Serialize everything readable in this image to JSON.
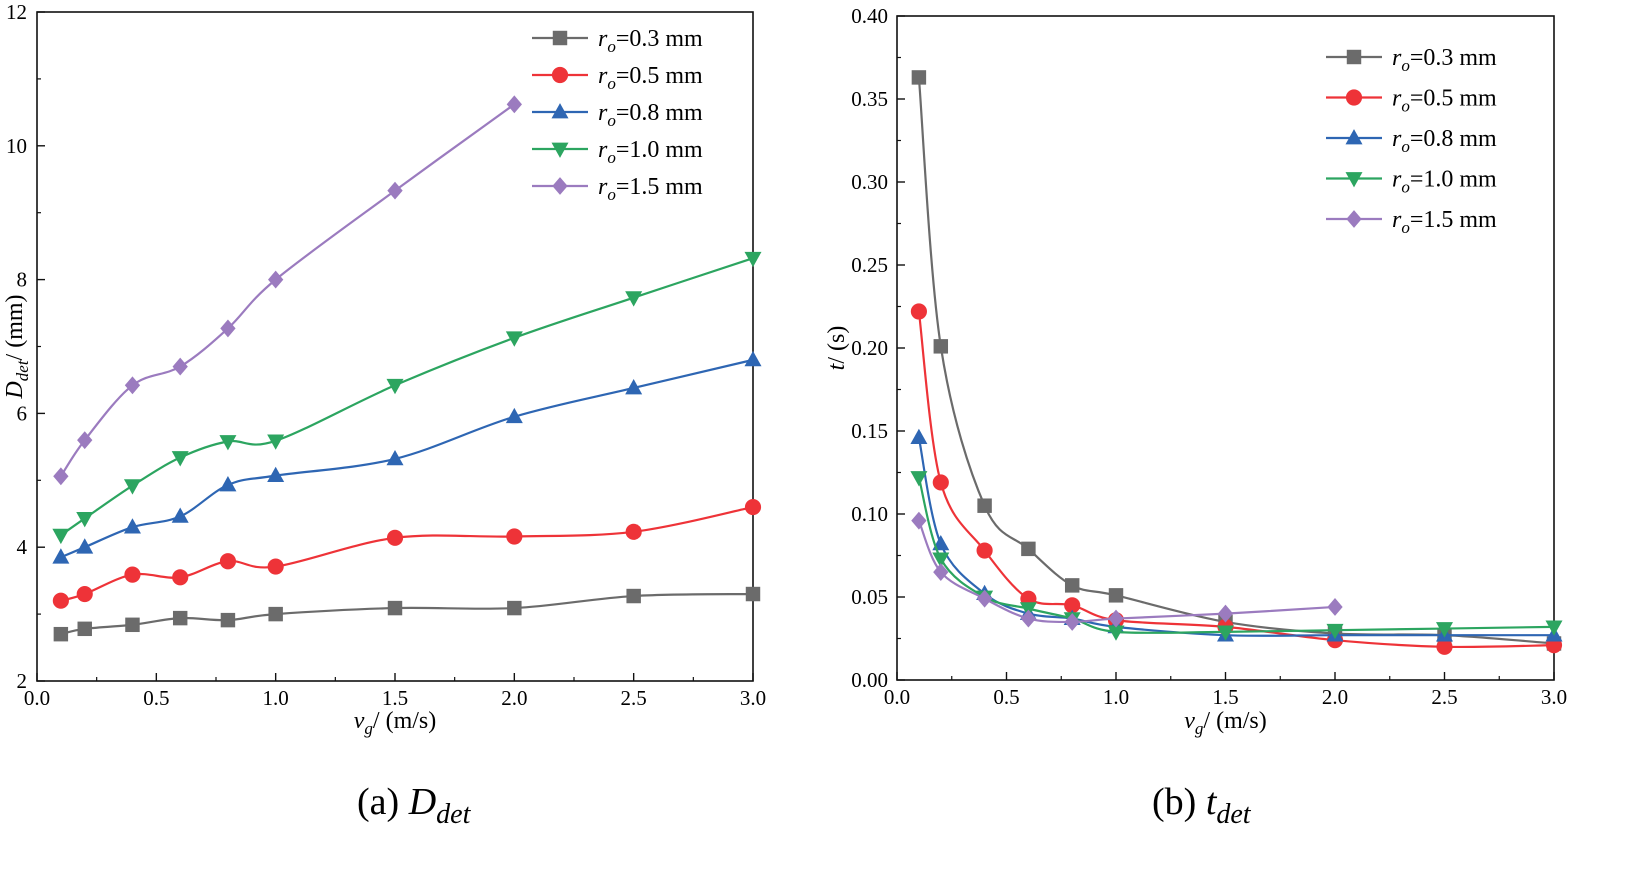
{
  "chart_data": [
    {
      "type": "line",
      "caption_prefix": "(a) ",
      "caption_main": "D",
      "caption_sub": "det",
      "ylabel_main": "D",
      "ylabel_sub": "det",
      "ylabel_unit": "/ (mm)",
      "xlabel_main": "v",
      "xlabel_sub": "g",
      "xlabel_unit": "/ (m/s)",
      "xlim": [
        0,
        3
      ],
      "ylim": [
        2,
        12
      ],
      "xticks": [
        "0.0",
        "0.5",
        "1.0",
        "1.5",
        "2.0",
        "2.5",
        "3.0"
      ],
      "xtick_values": [
        0,
        0.5,
        1.0,
        1.5,
        2.0,
        2.5,
        3.0
      ],
      "yticks": [
        "2",
        "4",
        "6",
        "8",
        "10",
        "12"
      ],
      "ytick_values": [
        2,
        4,
        6,
        8,
        10,
        12
      ],
      "legend_position": "top-right",
      "series": [
        {
          "legend_var": "r",
          "legend_sub": "o",
          "legend_rest": "=0.3 mm",
          "color": "#6b6b6b",
          "marker": "square",
          "x": [
            0.1,
            0.2,
            0.4,
            0.6,
            0.8,
            1.0,
            1.5,
            2.0,
            2.5,
            3.0
          ],
          "y": [
            2.7,
            2.78,
            2.84,
            2.94,
            2.91,
            3.0,
            3.09,
            3.09,
            3.27,
            3.3
          ]
        },
        {
          "legend_var": "r",
          "legend_sub": "o",
          "legend_rest": "=0.5 mm",
          "color": "#ee3338",
          "marker": "circle",
          "x": [
            0.1,
            0.2,
            0.4,
            0.6,
            0.8,
            1.0,
            1.5,
            2.0,
            2.5,
            3.0
          ],
          "y": [
            3.2,
            3.3,
            3.59,
            3.55,
            3.79,
            3.71,
            4.14,
            4.16,
            4.23,
            4.6
          ]
        },
        {
          "legend_var": "r",
          "legend_sub": "o",
          "legend_rest": "=0.8 mm",
          "color": "#2e66b3",
          "marker": "triangle-up",
          "x": [
            0.1,
            0.2,
            0.4,
            0.6,
            0.8,
            1.0,
            1.5,
            2.0,
            2.5,
            3.0
          ],
          "y": [
            3.85,
            4.0,
            4.3,
            4.46,
            4.93,
            5.07,
            5.32,
            5.95,
            6.38,
            6.8
          ]
        },
        {
          "legend_var": "r",
          "legend_sub": "o",
          "legend_rest": "=1.0 mm",
          "color": "#2ca560",
          "marker": "triangle-down",
          "x": [
            0.1,
            0.2,
            0.4,
            0.6,
            0.8,
            1.0,
            1.5,
            2.0,
            2.5,
            3.0
          ],
          "y": [
            4.18,
            4.43,
            4.92,
            5.34,
            5.58,
            5.59,
            6.42,
            7.13,
            7.73,
            8.32
          ]
        },
        {
          "legend_var": "r",
          "legend_sub": "o",
          "legend_rest": "=1.5 mm",
          "color": "#9b7bbf",
          "marker": "diamond",
          "x": [
            0.1,
            0.2,
            0.4,
            0.6,
            0.8,
            1.0,
            1.5,
            2.0
          ],
          "y": [
            5.06,
            5.6,
            6.42,
            6.7,
            7.27,
            8.0,
            9.33,
            10.62
          ]
        }
      ]
    },
    {
      "type": "line",
      "caption_prefix": "(b) ",
      "caption_main": "t",
      "caption_sub": "det",
      "ylabel_main": "t",
      "ylabel_sub": "",
      "ylabel_unit": "/ (s)",
      "xlabel_main": "v",
      "xlabel_sub": "g",
      "xlabel_unit": "/ (m/s)",
      "xlim": [
        0,
        3
      ],
      "ylim": [
        0,
        0.4
      ],
      "xticks": [
        "0.0",
        "0.5",
        "1.0",
        "1.5",
        "2.0",
        "2.5",
        "3.0"
      ],
      "xtick_values": [
        0,
        0.5,
        1.0,
        1.5,
        2.0,
        2.5,
        3.0
      ],
      "yticks": [
        "0.00",
        "0.05",
        "0.10",
        "0.15",
        "0.20",
        "0.25",
        "0.30",
        "0.35",
        "0.40"
      ],
      "ytick_values": [
        0,
        0.05,
        0.1,
        0.15,
        0.2,
        0.25,
        0.3,
        0.35,
        0.4
      ],
      "legend_position": "top-right",
      "series": [
        {
          "legend_var": "r",
          "legend_sub": "o",
          "legend_rest": "=0.3 mm",
          "color": "#6b6b6b",
          "marker": "square",
          "x": [
            0.1,
            0.2,
            0.4,
            0.6,
            0.8,
            1.0,
            1.5,
            2.0,
            2.5,
            3.0
          ],
          "y": [
            0.363,
            0.201,
            0.105,
            0.079,
            0.057,
            0.051,
            0.035,
            0.028,
            0.027,
            0.022
          ]
        },
        {
          "legend_var": "r",
          "legend_sub": "o",
          "legend_rest": "=0.5 mm",
          "color": "#ee3338",
          "marker": "circle",
          "x": [
            0.1,
            0.2,
            0.4,
            0.6,
            0.8,
            1.0,
            1.5,
            2.0,
            2.5,
            3.0
          ],
          "y": [
            0.222,
            0.119,
            0.078,
            0.049,
            0.045,
            0.036,
            0.032,
            0.024,
            0.02,
            0.021
          ]
        },
        {
          "legend_var": "r",
          "legend_sub": "o",
          "legend_rest": "=0.8 mm",
          "color": "#2e66b3",
          "marker": "triangle-up",
          "x": [
            0.1,
            0.2,
            0.4,
            0.6,
            0.8,
            1.0,
            1.5,
            2.0,
            2.5,
            3.0
          ],
          "y": [
            0.146,
            0.082,
            0.052,
            0.04,
            0.037,
            0.032,
            0.027,
            0.027,
            0.027,
            0.027
          ]
        },
        {
          "legend_var": "r",
          "legend_sub": "o",
          "legend_rest": "=1.0 mm",
          "color": "#2ca560",
          "marker": "triangle-down",
          "x": [
            0.1,
            0.2,
            0.4,
            0.6,
            0.8,
            1.0,
            1.5,
            2.0,
            2.5,
            3.0
          ],
          "y": [
            0.122,
            0.073,
            0.05,
            0.043,
            0.037,
            0.029,
            0.029,
            0.03,
            0.031,
            0.032
          ]
        },
        {
          "legend_var": "r",
          "legend_sub": "o",
          "legend_rest": "=1.5 mm",
          "color": "#9b7bbf",
          "marker": "diamond",
          "x": [
            0.1,
            0.2,
            0.4,
            0.6,
            0.8,
            1.0,
            1.5,
            2.0
          ],
          "y": [
            0.096,
            0.065,
            0.049,
            0.037,
            0.035,
            0.037,
            0.04,
            0.044
          ]
        }
      ]
    }
  ]
}
